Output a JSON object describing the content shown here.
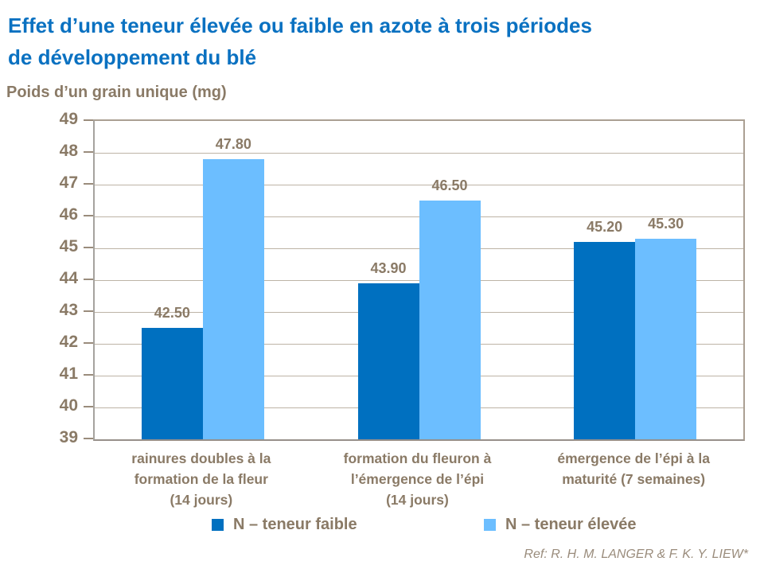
{
  "title": {
    "line1": "Effet d’une teneur élevée ou faible en azote à trois périodes",
    "line2": "de développement du blé"
  },
  "reference": "Ref: R. H. M. LANGER & F. K. Y. LIEW*",
  "colors": {
    "title_blue": "#0A71C1",
    "label_brown": "#8A7A66",
    "gridline": "#BDB4A6",
    "series_low": "#0070C0",
    "series_high": "#6CBEFF"
  },
  "chart_data": {
    "type": "bar",
    "title": "Effet d’une teneur élevée ou faible en azote à trois périodes de développement du blé",
    "ylabel": "Poids d’un grain unique (mg)",
    "xlabel": "",
    "ylim": [
      39,
      49
    ],
    "yticks": [
      49,
      48,
      47,
      46,
      45,
      44,
      43,
      42,
      41,
      40,
      39
    ],
    "grid": true,
    "legend_position": "bottom",
    "categories": [
      "rainures doubles à la\nformation de la fleur\n(14 jours)",
      "formation du fleuron à\nl’émergence de l’épi\n(14 jours)",
      "émergence de l’épi à la\nmaturité (7 semaines)"
    ],
    "series": [
      {
        "name": "N – teneur faible",
        "color": "#0070C0",
        "values": [
          42.5,
          43.9,
          45.2
        ]
      },
      {
        "name": "N – teneur élevée",
        "color": "#6CBEFF",
        "values": [
          47.8,
          46.5,
          45.3
        ]
      }
    ]
  }
}
